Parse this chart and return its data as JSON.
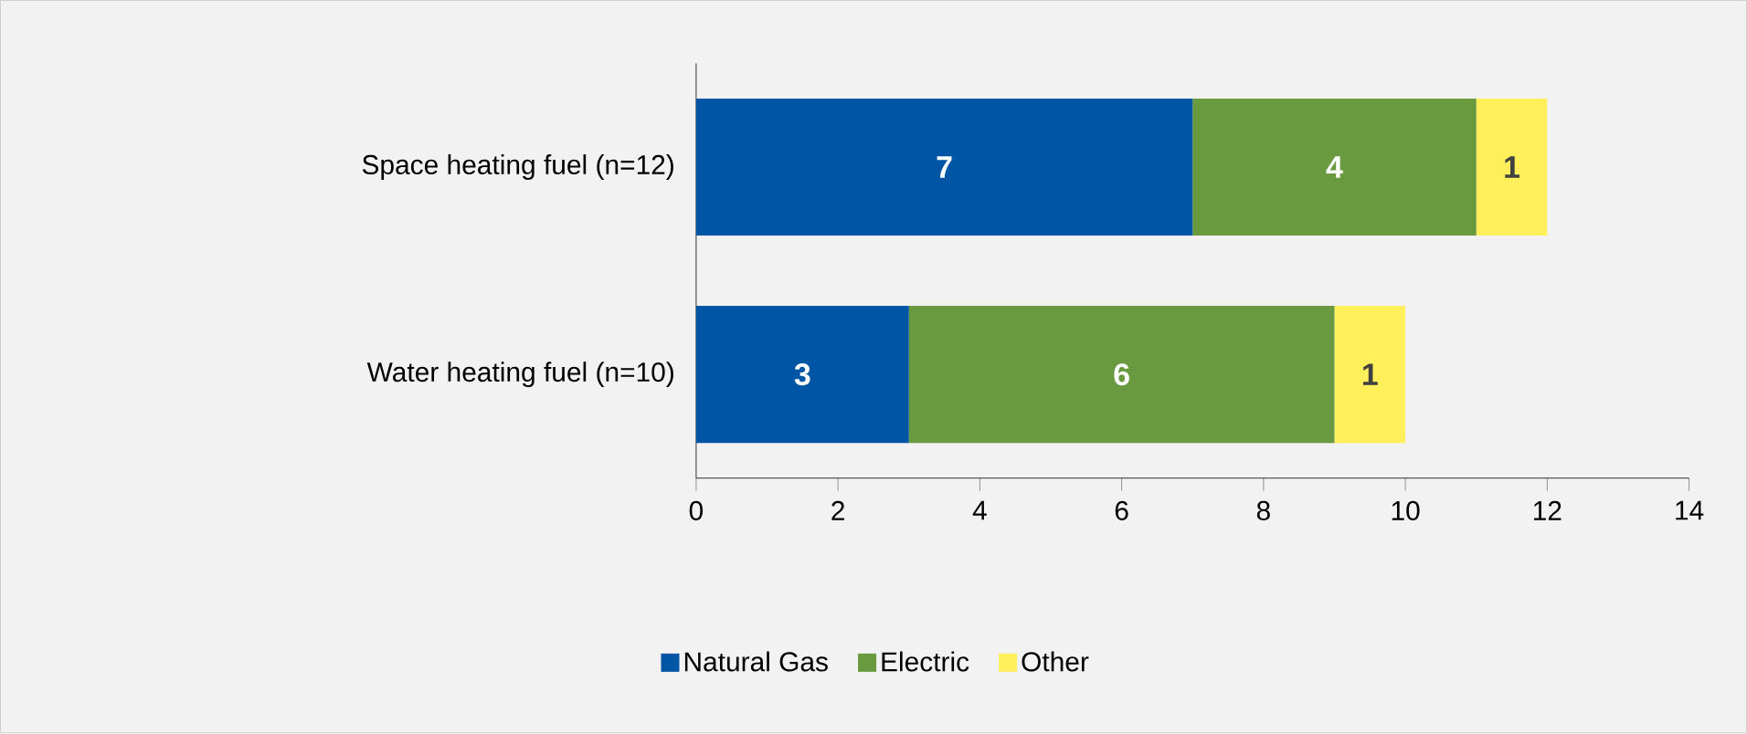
{
  "chart_data": {
    "type": "bar",
    "orientation": "horizontal",
    "stacked": true,
    "data_labels": true,
    "legend": "bottom",
    "grid": false,
    "categories": [
      "Space heating fuel (n=12)",
      "Water heating fuel (n=10)"
    ],
    "series": [
      {
        "name": "Natural Gas",
        "color": "#0055a5",
        "values": [
          7,
          3
        ]
      },
      {
        "name": "Electric",
        "color": "#6a9a3f",
        "values": [
          4,
          6
        ]
      },
      {
        "name": "Other",
        "color": "#ffef5a",
        "values": [
          1,
          1
        ]
      }
    ],
    "xlim": [
      0,
      14
    ],
    "xticks": [
      0,
      2,
      4,
      6,
      8,
      10,
      12,
      14
    ]
  }
}
